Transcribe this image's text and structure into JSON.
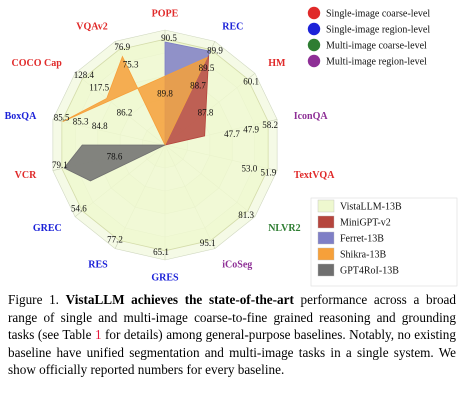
{
  "chart_data": {
    "type": "radar",
    "axes": [
      {
        "label": "POPE",
        "group": 0,
        "ticks": [
          "90.5"
        ]
      },
      {
        "label": "REC",
        "group": 1,
        "ticks": [
          "89.9",
          "89.5",
          "88.7"
        ]
      },
      {
        "label": "HM",
        "group": 0,
        "ticks": [
          "60.1"
        ]
      },
      {
        "label": "IconQA",
        "group": 3,
        "ticks": [
          "58.2",
          "47.9",
          "47.7"
        ]
      },
      {
        "label": "TextVQA",
        "group": 0,
        "ticks": [
          "51.9",
          "53.0"
        ]
      },
      {
        "label": "NLVR2",
        "group": 2,
        "ticks": [
          "81.3"
        ]
      },
      {
        "label": "iCoSeg",
        "group": 3,
        "ticks": [
          "95.1"
        ]
      },
      {
        "label": "GRES",
        "group": 1,
        "ticks": [
          "65.1"
        ]
      },
      {
        "label": "RES",
        "group": 1,
        "ticks": [
          "77.2"
        ]
      },
      {
        "label": "GREC",
        "group": 1,
        "ticks": [
          "54.6"
        ]
      },
      {
        "label": "VCR",
        "group": 0,
        "ticks": [
          "79.1"
        ]
      },
      {
        "label": "BoxQA",
        "group": 1,
        "ticks": [
          "85.5",
          "85.3",
          "84.8"
        ]
      },
      {
        "label": "COCO Cap",
        "group": 0,
        "ticks": [
          "128.4",
          "117.5"
        ]
      },
      {
        "label": "VQAv2",
        "group": 0,
        "ticks": [
          "76.9",
          "75.3"
        ]
      }
    ],
    "inner_labels": [
      "89.8",
      "86.2",
      "87.8",
      "78.6"
    ],
    "series": [
      {
        "name": "VistaLLM-13B",
        "color": "#eef8cf",
        "values": [
          90.5,
          89.9,
          60.1,
          58.2,
          53.0,
          81.3,
          95.1,
          65.1,
          77.2,
          54.6,
          79.1,
          85.5,
          128.4,
          76.9
        ]
      },
      {
        "name": "MiniGPT-v2",
        "color": "#b5453d",
        "values": [
          null,
          88.7,
          null,
          47.9,
          null,
          null,
          null,
          null,
          null,
          null,
          null,
          null,
          null,
          null
        ]
      },
      {
        "name": "Ferret-13B",
        "color": "#7f7fc6",
        "values": [
          89.8,
          89.5,
          null,
          null,
          null,
          null,
          null,
          null,
          null,
          null,
          null,
          null,
          null,
          null
        ]
      },
      {
        "name": "Shikra-13B",
        "color": "#f6a03a",
        "values": [
          null,
          87.8,
          null,
          null,
          null,
          null,
          null,
          null,
          null,
          null,
          null,
          85.3,
          117.5,
          75.3
        ]
      },
      {
        "name": "GPT4RoI-13B",
        "color": "#6f6f6f",
        "values": [
          null,
          null,
          null,
          null,
          null,
          null,
          null,
          null,
          null,
          null,
          78.6,
          null,
          null,
          null
        ]
      }
    ]
  },
  "groups": [
    {
      "label": "Single-image coarse-level",
      "color": "#e02a2a"
    },
    {
      "label": "Single-image region-level",
      "color": "#1c22d8"
    },
    {
      "label": "Multi-image coarse-level",
      "color": "#2e7d32"
    },
    {
      "label": "Multi-image region-level",
      "color": "#8e2f96"
    }
  ],
  "caption": {
    "prefix": "Figure 1. ",
    "bold": "VistaLLM achieves the state-of-the-art",
    "part1": " performance across a broad range of single and multi-image coarse-to-fine grained reasoning and grounding tasks (see Table ",
    "ref": "1",
    "part2": " for details) among general-purpose baselines. Notably, no existing baseline have unified segmentation and multi-image tasks in a single system. We show officially reported numbers for every baseline."
  }
}
